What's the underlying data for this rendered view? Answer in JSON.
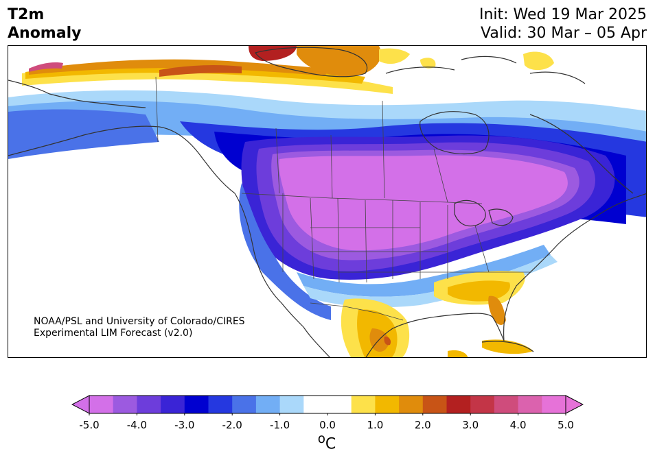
{
  "title": {
    "variable_line1": "T2m",
    "variable_line2": "Anomaly",
    "init": "Init: Wed 19 Mar 2025",
    "valid": "Valid: 30 Mar – 05 Apr"
  },
  "credit": {
    "line1": "NOAA/PSL and University of Colorado/CIRES",
    "line2": "Experimental LIM Forecast (v2.0)"
  },
  "colorbar": {
    "unit_label": "oC",
    "unit_base": "C",
    "unit_super": "o",
    "extend": "both",
    "min": -5.0,
    "max": 5.0,
    "tick_labels": [
      "-5.0",
      "-4.0",
      "-3.0",
      "-2.0",
      "-1.0",
      "0.0",
      "1.0",
      "2.0",
      "3.0",
      "4.0",
      "5.0"
    ],
    "bins": [
      {
        "range": [
          -5.0,
          -4.5
        ],
        "color": "#d370e8"
      },
      {
        "range": [
          -4.5,
          -4.0
        ],
        "color": "#9c5ae0"
      },
      {
        "range": [
          -4.0,
          -3.5
        ],
        "color": "#6d3ddb"
      },
      {
        "range": [
          -3.5,
          -3.0
        ],
        "color": "#3a24d6"
      },
      {
        "range": [
          -3.0,
          -2.5
        ],
        "color": "#0000d0"
      },
      {
        "range": [
          -2.5,
          -2.0
        ],
        "color": "#2538e0"
      },
      {
        "range": [
          -2.0,
          -1.5
        ],
        "color": "#4a72e8"
      },
      {
        "range": [
          -1.5,
          -1.0
        ],
        "color": "#72aef5"
      },
      {
        "range": [
          -1.0,
          -0.5
        ],
        "color": "#aad8fa"
      },
      {
        "range": [
          -0.5,
          0.5
        ],
        "color": "#ffffff"
      },
      {
        "range": [
          0.5,
          1.0
        ],
        "color": "#fde14a"
      },
      {
        "range": [
          1.0,
          1.5
        ],
        "color": "#f2b800"
      },
      {
        "range": [
          1.5,
          2.0
        ],
        "color": "#e08c0c"
      },
      {
        "range": [
          2.0,
          2.5
        ],
        "color": "#c85416"
      },
      {
        "range": [
          2.5,
          3.0
        ],
        "color": "#b32020"
      },
      {
        "range": [
          3.0,
          3.5
        ],
        "color": "#c33547"
      },
      {
        "range": [
          3.5,
          4.0
        ],
        "color": "#cf4c7c"
      },
      {
        "range": [
          4.0,
          4.5
        ],
        "color": "#db62ae"
      },
      {
        "range": [
          4.5,
          5.0
        ],
        "color": "#e672d8"
      }
    ],
    "under_color": "#d370e8",
    "over_color": "#e672d8"
  },
  "map": {
    "region": "North America",
    "projection": "lambert-conformal",
    "coastline_color": "#333333",
    "border_color": "#333333"
  }
}
